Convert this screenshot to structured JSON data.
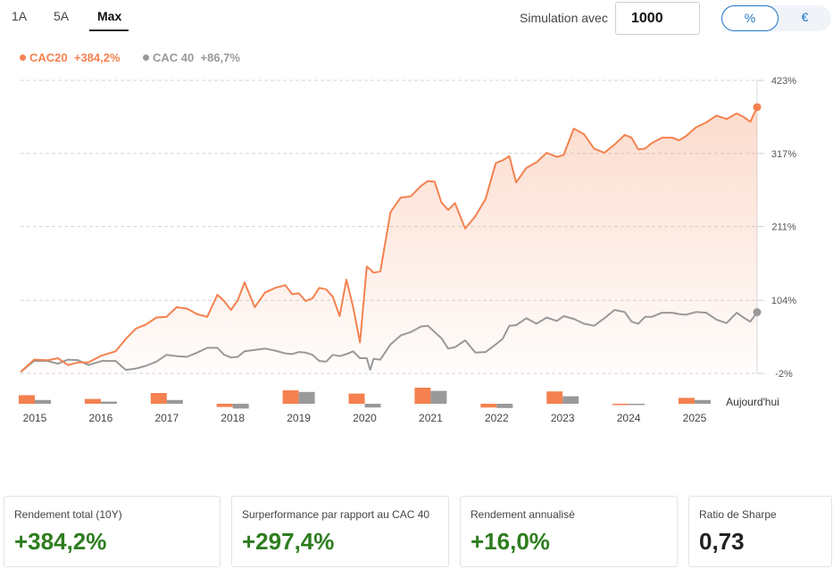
{
  "tabs": [
    {
      "label": "1A",
      "active": false
    },
    {
      "label": "5A",
      "active": false
    },
    {
      "label": "Max",
      "active": true
    }
  ],
  "simulation": {
    "label": "Simulation avec",
    "value": "1000"
  },
  "unit_toggle": {
    "options": [
      "%",
      "€"
    ],
    "selected": "%"
  },
  "colors": {
    "cac20": "#f4814f",
    "cac40": "#999999",
    "positive": "#2e7d1f",
    "accent": "#1f78c8"
  },
  "chart_data": {
    "type": "line",
    "y_tick_labels": [
      "423%",
      "317%",
      "211%",
      "104%",
      "-2%"
    ],
    "y_ticks": [
      423,
      317,
      211,
      104,
      -2
    ],
    "ylim": [
      -2,
      423
    ],
    "xlim": [
      2015.0,
      2025.85
    ],
    "x_tick_labels": [
      "2015",
      "2016",
      "2017",
      "2018",
      "2019",
      "2020",
      "2021",
      "2022",
      "2023",
      "2024",
      "2025"
    ],
    "end_label": "Aujourd'hui",
    "grid": "horizontal-dashed",
    "legend": "top-left",
    "series": [
      {
        "name": "CAC20",
        "legend_value": "+384,2%",
        "color": "#f4814f",
        "x": [
          2015.0,
          2015.2,
          2015.4,
          2015.55,
          2015.7,
          2015.85,
          2016.0,
          2016.2,
          2016.4,
          2016.55,
          2016.7,
          2016.85,
          2017.0,
          2017.15,
          2017.3,
          2017.45,
          2017.6,
          2017.75,
          2017.9,
          2018.0,
          2018.1,
          2018.2,
          2018.3,
          2018.45,
          2018.6,
          2018.75,
          2018.9,
          2019.0,
          2019.1,
          2019.2,
          2019.3,
          2019.4,
          2019.5,
          2019.6,
          2019.7,
          2019.8,
          2019.9,
          2020.0,
          2020.1,
          2020.15,
          2020.2,
          2020.3,
          2020.45,
          2020.6,
          2020.75,
          2020.9,
          2021.0,
          2021.1,
          2021.2,
          2021.3,
          2021.4,
          2021.55,
          2021.7,
          2021.85,
          2022.0,
          2022.1,
          2022.2,
          2022.3,
          2022.45,
          2022.6,
          2022.75,
          2022.9,
          2023.0,
          2023.15,
          2023.3,
          2023.45,
          2023.6,
          2023.75,
          2023.9,
          2024.0,
          2024.1,
          2024.2,
          2024.3,
          2024.45,
          2024.6,
          2024.7,
          2024.8,
          2024.95,
          2025.1,
          2025.25,
          2025.4,
          2025.55,
          2025.65,
          2025.75,
          2025.85
        ],
        "values": [
          0,
          18,
          17,
          20,
          10,
          14,
          14,
          24,
          30,
          48,
          63,
          69,
          79,
          80,
          94,
          92,
          84,
          80,
          112,
          103,
          90,
          104,
          130,
          94,
          115,
          122,
          126,
          113,
          114,
          103,
          107,
          122,
          120,
          109,
          81,
          134,
          94,
          43,
          153,
          149,
          144,
          146,
          232,
          253,
          255,
          270,
          277,
          276,
          246,
          235,
          245,
          208,
          226,
          251,
          303,
          307,
          313,
          275,
          296,
          304,
          318,
          312,
          315,
          353,
          345,
          324,
          318,
          330,
          344,
          340,
          323,
          324,
          332,
          340,
          340,
          336,
          342,
          355,
          362,
          372,
          367,
          375,
          370,
          363,
          384.2
        ]
      },
      {
        "name": "CAC 40",
        "legend_value": "+86,7%",
        "color": "#999999",
        "x": [
          2015.0,
          2015.2,
          2015.4,
          2015.55,
          2015.7,
          2015.85,
          2016.0,
          2016.2,
          2016.4,
          2016.55,
          2016.7,
          2016.85,
          2017.0,
          2017.15,
          2017.3,
          2017.45,
          2017.6,
          2017.75,
          2017.9,
          2018.0,
          2018.1,
          2018.2,
          2018.3,
          2018.45,
          2018.6,
          2018.75,
          2018.9,
          2019.0,
          2019.1,
          2019.2,
          2019.3,
          2019.4,
          2019.5,
          2019.6,
          2019.7,
          2019.8,
          2019.9,
          2020.0,
          2020.1,
          2020.15,
          2020.2,
          2020.3,
          2020.45,
          2020.6,
          2020.75,
          2020.9,
          2021.0,
          2021.1,
          2021.2,
          2021.3,
          2021.4,
          2021.55,
          2021.7,
          2021.85,
          2022.0,
          2022.1,
          2022.2,
          2022.3,
          2022.45,
          2022.6,
          2022.75,
          2022.9,
          2023.0,
          2023.15,
          2023.3,
          2023.45,
          2023.6,
          2023.75,
          2023.9,
          2024.0,
          2024.1,
          2024.2,
          2024.3,
          2024.45,
          2024.6,
          2024.7,
          2024.8,
          2024.95,
          2025.1,
          2025.25,
          2025.4,
          2025.55,
          2025.65,
          2025.75,
          2025.85
        ],
        "values": [
          0,
          16,
          16,
          12,
          18,
          17,
          10,
          16,
          16,
          3,
          5,
          9,
          15,
          25,
          23,
          22,
          28,
          35,
          35,
          25,
          21,
          22,
          30,
          32,
          34,
          31,
          27,
          26,
          29,
          28,
          25,
          16,
          15,
          25,
          23,
          26,
          30,
          20,
          20,
          3,
          19,
          18,
          40,
          53,
          58,
          66,
          67,
          58,
          49,
          34,
          36,
          46,
          28,
          29,
          40,
          48,
          67,
          68,
          78,
          70,
          79,
          74,
          81,
          77,
          70,
          67,
          78,
          90,
          87,
          73,
          70,
          80,
          80,
          86,
          86,
          84,
          83,
          87,
          86,
          76,
          71,
          86,
          79,
          73,
          86.7
        ]
      }
    ],
    "annual_bars": {
      "years": [
        "2015",
        "2016",
        "2017",
        "2018",
        "2019",
        "2020",
        "2021",
        "2022",
        "2023",
        "2024",
        "2025"
      ],
      "cac20": [
        8.0,
        4.5,
        10.0,
        -3.0,
        12.5,
        9.5,
        15.0,
        -3.5,
        11.5,
        -0.5,
        5.5
      ],
      "cac40": [
        3.5,
        2.0,
        3.5,
        -4.5,
        11.0,
        -3.5,
        12.0,
        -4.0,
        7.0,
        -0.5,
        3.5
      ]
    }
  },
  "stats": [
    {
      "label": "Rendement total (10Y)",
      "value": "+384,2%",
      "positive": true
    },
    {
      "label": "Surperformance par rapport au CAC 40",
      "value": "+297,4%",
      "positive": true
    },
    {
      "label": "Rendement annualisé",
      "value": "+16,0%",
      "positive": true
    },
    {
      "label": "Ratio de Sharpe",
      "value": "0,73",
      "positive": false
    }
  ]
}
